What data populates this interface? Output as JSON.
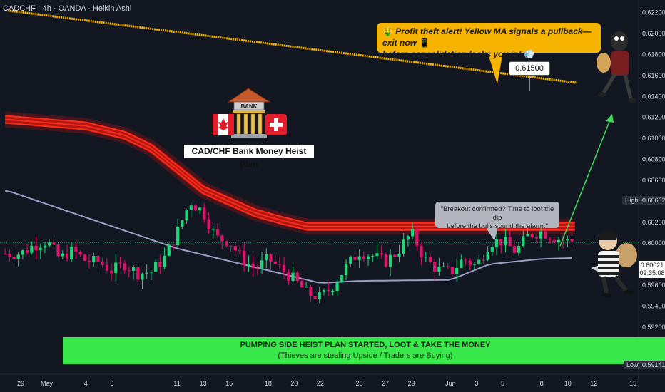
{
  "header": {
    "text": "CADCHF · 4h · OANDA · Heikin Ashi"
  },
  "annotations": {
    "alert_text_1": "Profit theft alert! Yellow MA signals a pullback—exit now",
    "alert_text_2": "before consolidation locks you in!",
    "alert_emoji_start": "🤑",
    "alert_emoji_mid": "📱",
    "alert_emoji_end": "💨",
    "target_price": "0.61500",
    "breakout_1": "\"Breakout confirmed? Time to loot the dip",
    "breakout_2": "before the bulls sound the alarm.\"",
    "bank_sign": "BANK",
    "bank_title": "CAD/CHF Bank Money Heist Plan",
    "banner_1": "PUMPING SIDE HEIST PLAN STARTED, LOOT & TAKE THE MONEY",
    "banner_2": "(Thieves are stealing Upside / Traders are Buying)"
  },
  "price_axis": {
    "high_label": "High",
    "high_value": "0.60602",
    "low_label": "Low",
    "low_value": "0.59141",
    "last_price": "0.60021",
    "countdown": "02:35:08"
  },
  "colors": {
    "background": "#131722",
    "bull_candle": "#22d67a",
    "bear_candle": "#e0126b",
    "ma_yellow": "#f6b400",
    "ma_grey": "#9c9fc4",
    "band_red": "#ff2a1a",
    "arrow_green": "#3fdc5a"
  },
  "chart_data": {
    "type": "candlestick",
    "title": "CADCHF · 4h · OANDA · Heikin Ashi",
    "y_ticks": [
      "0.62200",
      "0.62000",
      "0.61800",
      "0.61600",
      "0.61400",
      "0.61200",
      "0.61000",
      "0.60800",
      "0.60600",
      "0.60400",
      "0.60200",
      "0.60000",
      "0.59800",
      "0.59600",
      "0.59400",
      "0.59200",
      "0.59000"
    ],
    "ylim": [
      0.5892,
      0.6232
    ],
    "x_ticks": [
      {
        "label": "29",
        "t": 0
      },
      {
        "label": "May",
        "t": 2
      },
      {
        "label": "4",
        "t": 5
      },
      {
        "label": "6",
        "t": 7
      },
      {
        "label": "11",
        "t": 12
      },
      {
        "label": "13",
        "t": 14
      },
      {
        "label": "15",
        "t": 16
      },
      {
        "label": "18",
        "t": 19
      },
      {
        "label": "20",
        "t": 21
      },
      {
        "label": "22",
        "t": 23
      },
      {
        "label": "25",
        "t": 26
      },
      {
        "label": "27",
        "t": 28
      },
      {
        "label": "29",
        "t": 30
      },
      {
        "label": "Jun",
        "t": 33
      },
      {
        "label": "3",
        "t": 35
      },
      {
        "label": "5",
        "t": 37
      },
      {
        "label": "8",
        "t": 40
      },
      {
        "label": "10",
        "t": 42
      },
      {
        "label": "12",
        "t": 44
      },
      {
        "label": "15",
        "t": 47
      }
    ],
    "price_path": [
      [
        0,
        0.599
      ],
      [
        1,
        0.5998
      ],
      [
        2,
        0.6002
      ],
      [
        3,
        0.5985
      ],
      [
        4,
        0.5993
      ],
      [
        5,
        0.5983
      ],
      [
        6,
        0.5982
      ],
      [
        7,
        0.5974
      ],
      [
        8,
        0.598
      ],
      [
        9,
        0.5971
      ],
      [
        10,
        0.5973
      ],
      [
        11,
        0.5985
      ],
      [
        12,
        0.601
      ],
      [
        13,
        0.604
      ],
      [
        14,
        0.603
      ],
      [
        15,
        0.6005
      ],
      [
        16,
        0.6002
      ],
      [
        17,
        0.5985
      ],
      [
        18,
        0.5975
      ],
      [
        19,
        0.5985
      ],
      [
        20,
        0.5975
      ],
      [
        21,
        0.5965
      ],
      [
        22,
        0.5952
      ],
      [
        23,
        0.5948
      ],
      [
        24,
        0.596
      ],
      [
        25,
        0.5978
      ],
      [
        26,
        0.5992
      ],
      [
        27,
        0.5988
      ],
      [
        28,
        0.5982
      ],
      [
        29,
        0.5993
      ],
      [
        30,
        0.601
      ],
      [
        31,
        0.5985
      ],
      [
        32,
        0.5975
      ],
      [
        33,
        0.5972
      ],
      [
        34,
        0.5985
      ],
      [
        35,
        0.5978
      ],
      [
        36,
        0.6001
      ],
      [
        37,
        0.6002
      ],
      [
        38,
        0.5992
      ],
      [
        39,
        0.6008
      ],
      [
        40,
        0.6011
      ],
      [
        41,
        0.6005
      ],
      [
        42,
        0.6002
      ]
    ],
    "yellow_ma": [
      [
        -1,
        0.6222
      ],
      [
        42.7,
        0.6153
      ]
    ],
    "grey_ma": [
      [
        -1,
        0.605
      ],
      [
        12,
        0.5995
      ],
      [
        23,
        0.5962
      ],
      [
        26,
        0.5964
      ],
      [
        33,
        0.5965
      ],
      [
        36,
        0.598
      ],
      [
        40,
        0.5985
      ],
      [
        42.6,
        0.5986
      ]
    ],
    "red_band": [
      [
        -1,
        0.6122
      ],
      [
        5,
        0.6116
      ],
      [
        8,
        0.6107
      ],
      [
        10,
        0.6095
      ],
      [
        12,
        0.6075
      ],
      [
        14,
        0.6055
      ],
      [
        16,
        0.6044
      ],
      [
        18,
        0.6033
      ],
      [
        20,
        0.6026
      ],
      [
        22,
        0.602
      ],
      [
        42.6,
        0.602
      ]
    ],
    "high": 0.60602,
    "low": 0.59141,
    "last": 0.60021
  }
}
